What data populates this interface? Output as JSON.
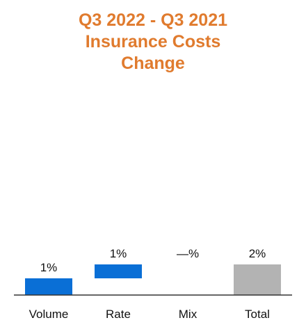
{
  "chart_data": {
    "type": "bar",
    "subtype": "waterfall",
    "title_lines": [
      "Q3 2022 - Q3 2021",
      "Insurance Costs",
      "Change"
    ],
    "categories": [
      "Volume",
      "Rate",
      "Mix",
      "Total"
    ],
    "values": [
      1.2,
      1.0,
      0.0,
      2.2
    ],
    "data_labels": [
      "1%",
      "1%",
      "—%",
      "2%"
    ],
    "bar_kind": [
      "delta",
      "delta",
      "delta",
      "total"
    ],
    "xlabel": "",
    "ylabel": "",
    "grid": false,
    "legend": "none",
    "colors": {
      "delta": "#0a6fd6",
      "total": "#b3b3b3",
      "title": "#e07b2e",
      "axis": "#333333"
    }
  }
}
